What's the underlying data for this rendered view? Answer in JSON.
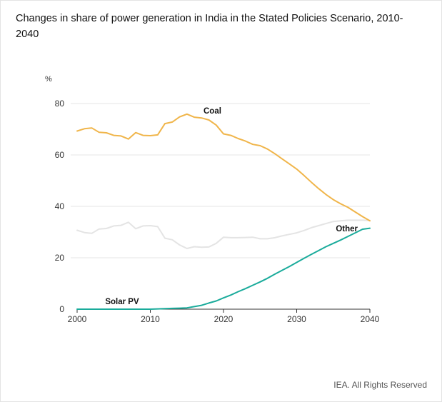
{
  "title": "Changes in share of power generation in India in the Stated Policies Scenario, 2010-2040",
  "credit": "IEA. All Rights Reserved",
  "chart_data": {
    "type": "line",
    "title": "Changes in share of power generation in India in the Stated Policies Scenario, 2010-2040",
    "ylabel": "%",
    "xlabel": "",
    "xlim": [
      2000,
      2040
    ],
    "ylim": [
      0,
      80
    ],
    "xticks": [
      "2000",
      "2010",
      "2020",
      "2030",
      "2040"
    ],
    "yticks": [
      "0",
      "20",
      "40",
      "60",
      "80"
    ],
    "grid": true,
    "series": [
      {
        "name": "Coal",
        "color": "#f0b54a",
        "x": [
          2000,
          2001,
          2002,
          2003,
          2004,
          2005,
          2006,
          2007,
          2008,
          2009,
          2010,
          2011,
          2012,
          2013,
          2014,
          2015,
          2016,
          2017,
          2018,
          2019,
          2020,
          2021,
          2022,
          2023,
          2024,
          2025,
          2026,
          2027,
          2028,
          2029,
          2030,
          2031,
          2032,
          2033,
          2034,
          2035,
          2036,
          2037,
          2038,
          2039,
          2040
        ],
        "values": [
          69.3,
          70.2,
          70.5,
          68.8,
          68.6,
          67.6,
          67.4,
          66.2,
          68.7,
          67.6,
          67.5,
          67.8,
          72.2,
          72.8,
          74.8,
          75.9,
          74.7,
          74.4,
          73.6,
          71.6,
          68.2,
          67.6,
          66.4,
          65.4,
          64.1,
          63.6,
          62.3,
          60.5,
          58.5,
          56.5,
          54.5,
          52.0,
          49.4,
          46.9,
          44.6,
          42.6,
          41.0,
          39.6,
          37.8,
          36.0,
          34.4
        ]
      },
      {
        "name": "Other",
        "color": "#e4e4e4",
        "x": [
          2000,
          2001,
          2002,
          2003,
          2004,
          2005,
          2006,
          2007,
          2008,
          2009,
          2010,
          2011,
          2012,
          2013,
          2014,
          2015,
          2016,
          2017,
          2018,
          2019,
          2020,
          2021,
          2022,
          2023,
          2024,
          2025,
          2026,
          2027,
          2028,
          2029,
          2030,
          2031,
          2032,
          2033,
          2034,
          2035,
          2036,
          2037,
          2038,
          2039,
          2040
        ],
        "values": [
          30.7,
          29.8,
          29.5,
          31.2,
          31.4,
          32.4,
          32.6,
          33.8,
          31.3,
          32.4,
          32.5,
          32.1,
          27.6,
          27.0,
          25.0,
          23.6,
          24.3,
          24.1,
          24.2,
          25.6,
          28.0,
          27.8,
          27.8,
          27.9,
          28.0,
          27.4,
          27.4,
          27.8,
          28.5,
          29.1,
          29.7,
          30.6,
          31.7,
          32.5,
          33.3,
          34.1,
          34.4,
          34.6,
          34.6,
          34.6,
          34.5
        ]
      },
      {
        "name": "Solar PV",
        "color": "#1aab9b",
        "x": [
          2000,
          2001,
          2002,
          2003,
          2004,
          2005,
          2006,
          2007,
          2008,
          2009,
          2010,
          2011,
          2012,
          2013,
          2014,
          2015,
          2016,
          2017,
          2018,
          2019,
          2020,
          2021,
          2022,
          2023,
          2024,
          2025,
          2026,
          2027,
          2028,
          2029,
          2030,
          2031,
          2032,
          2033,
          2034,
          2035,
          2036,
          2037,
          2038,
          2039,
          2040
        ],
        "values": [
          0,
          0,
          0,
          0,
          0,
          0,
          0,
          0,
          0,
          0,
          0,
          0.1,
          0.2,
          0.3,
          0.4,
          0.5,
          1.0,
          1.5,
          2.4,
          3.2,
          4.4,
          5.5,
          6.8,
          8.0,
          9.3,
          10.6,
          12.0,
          13.6,
          15.1,
          16.6,
          18.2,
          19.8,
          21.3,
          22.8,
          24.3,
          25.6,
          26.9,
          28.3,
          29.7,
          31.1,
          31.5
        ]
      }
    ]
  }
}
